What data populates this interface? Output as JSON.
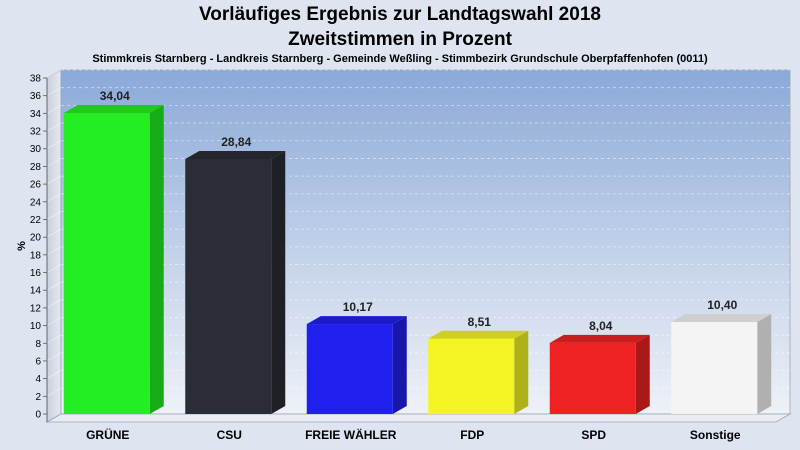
{
  "header": {
    "title_line1": "Vorläufiges Ergebnis zur Landtagswahl 2018",
    "title_line2": "Zweitstimmen in Prozent",
    "subtitle": "Stimmkreis Starnberg - Landkreis Starnberg - Gemeinde Weßling - Stimmbezirk Grundschule Oberpfaffenhofen (0011)"
  },
  "chart_data": {
    "type": "bar",
    "title": "Vorläufiges Ergebnis zur Landtagswahl 2018 / Zweitstimmen in Prozent",
    "ylabel": "%",
    "ylim": [
      0,
      38
    ],
    "ytick_step": 2,
    "grid": true,
    "categories": [
      "GRÜNE",
      "CSU",
      "FREIE WÄHLER",
      "FDP",
      "SPD",
      "Sonstige"
    ],
    "values": [
      34.04,
      28.84,
      10.17,
      8.51,
      8.04,
      10.4
    ],
    "value_labels": [
      "34,04",
      "28,84",
      "10,17",
      "8,51",
      "8,04",
      "10,40"
    ],
    "colors": [
      "#22ee22",
      "#2a2d35",
      "#2020ee",
      "#f4f422",
      "#ee2222",
      "#f4f4f4"
    ]
  }
}
